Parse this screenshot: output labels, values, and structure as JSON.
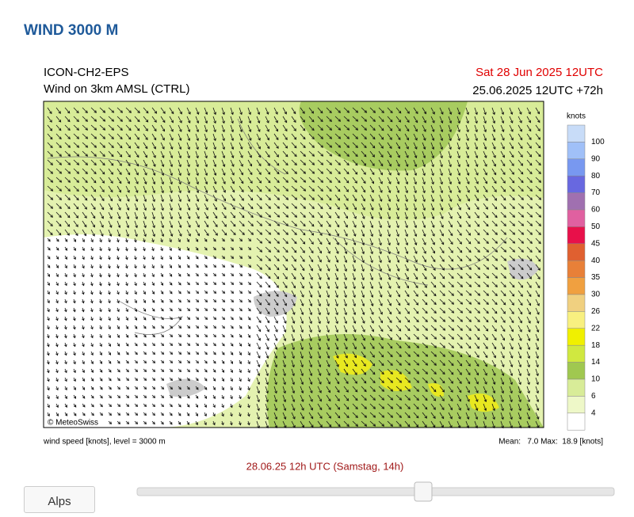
{
  "header": {
    "title": "WIND 3000 M"
  },
  "map": {
    "model": "ICON-CH2-EPS",
    "subtitle": "Wind on 3km AMSL (CTRL)",
    "valid_time": "Sat 28 Jun 2025 12UTC",
    "run": "25.06.2025 12UTC +72h",
    "copyright": "© MeteoSwiss",
    "footer_left": "wind speed [knots], level = 3000 m",
    "footer_right": "Mean:   7.0 Max:  18.9 [knots]"
  },
  "legend": {
    "unit": "knots",
    "levels": [
      "100",
      "90",
      "80",
      "70",
      "60",
      "50",
      "45",
      "40",
      "35",
      "30",
      "26",
      "22",
      "18",
      "14",
      "10",
      "6",
      "4"
    ],
    "colors": [
      "#c8dcf8",
      "#a0c0f8",
      "#7898f0",
      "#6868e0",
      "#a070b0",
      "#e060a0",
      "#e8104a",
      "#e06030",
      "#e88038",
      "#f0a040",
      "#f0d080",
      "#f8f080",
      "#f0f000",
      "#d0e840",
      "#a0c850",
      "#d8ec98",
      "#eef8c8",
      "#ffffff"
    ]
  },
  "timeline": {
    "label": "28.06.25 12h UTC (Samstag, 14h)"
  },
  "nav": {
    "button": "Alps"
  }
}
